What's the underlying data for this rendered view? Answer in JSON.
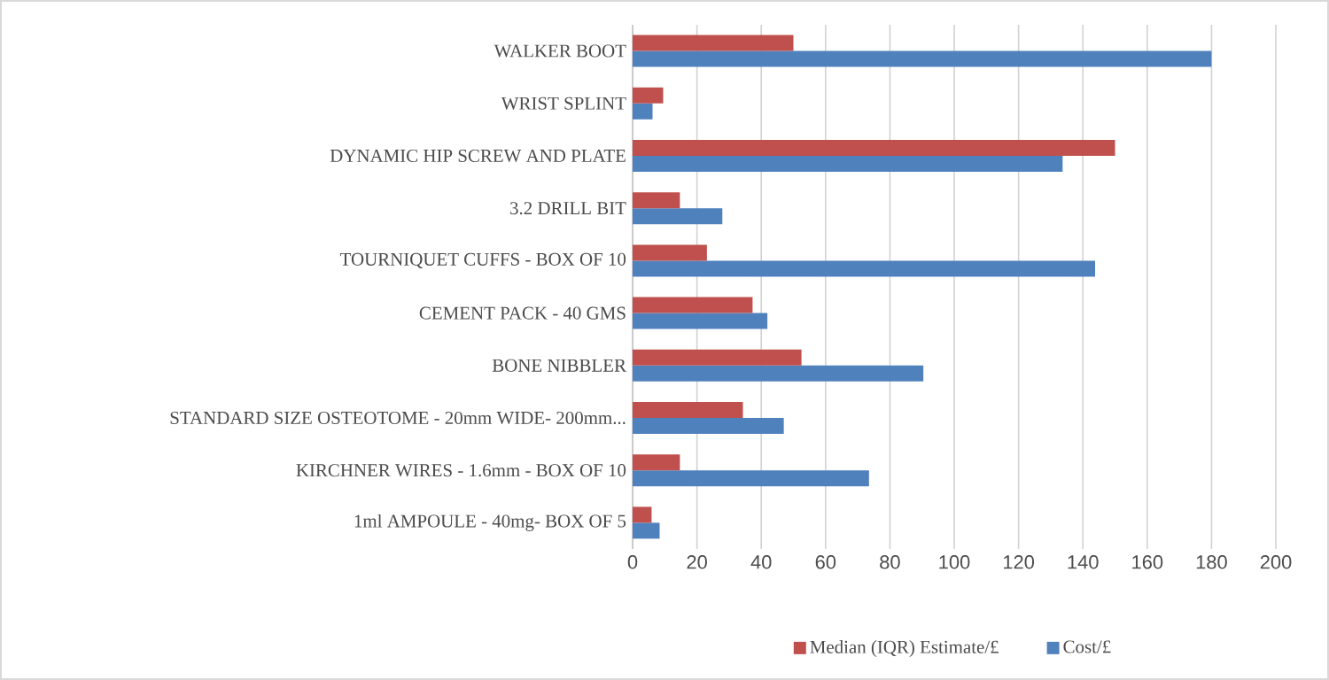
{
  "chart_data": {
    "type": "bar",
    "orientation": "horizontal",
    "categories": [
      "WALKER BOOT",
      "WRIST SPLINT",
      "DYNAMIC HIP SCREW AND PLATE",
      "3.2 DRILL BIT",
      "TOURNIQUET CUFFS - BOX OF 10",
      "CEMENT PACK - 40 GMS",
      "BONE NIBBLER",
      "STANDARD SIZE OSTEOTOME - 20mm WIDE- 200mm...",
      "KIRCHNER WIRES - 1.6mm - BOX OF 10",
      "1ml AMPOULE - 40mg- BOX OF 5"
    ],
    "series": [
      {
        "name": "Median (IQR) Estimate/£",
        "color": "#c0504d",
        "values": [
          50,
          9.5,
          150,
          14.7,
          23.1,
          37.3,
          52.5,
          34.3,
          14.7,
          5.9
        ]
      },
      {
        "name": "Cost/£",
        "color": "#4f81bd",
        "values": [
          180,
          6.2,
          133.7,
          27.9,
          143.8,
          41.9,
          90.4,
          47,
          73.5,
          8.4
        ]
      }
    ],
    "xlim": [
      0,
      200
    ],
    "xticks": [
      0,
      20,
      40,
      60,
      80,
      100,
      120,
      140,
      160,
      180,
      200
    ],
    "grid": "x",
    "legend": "bottom"
  }
}
